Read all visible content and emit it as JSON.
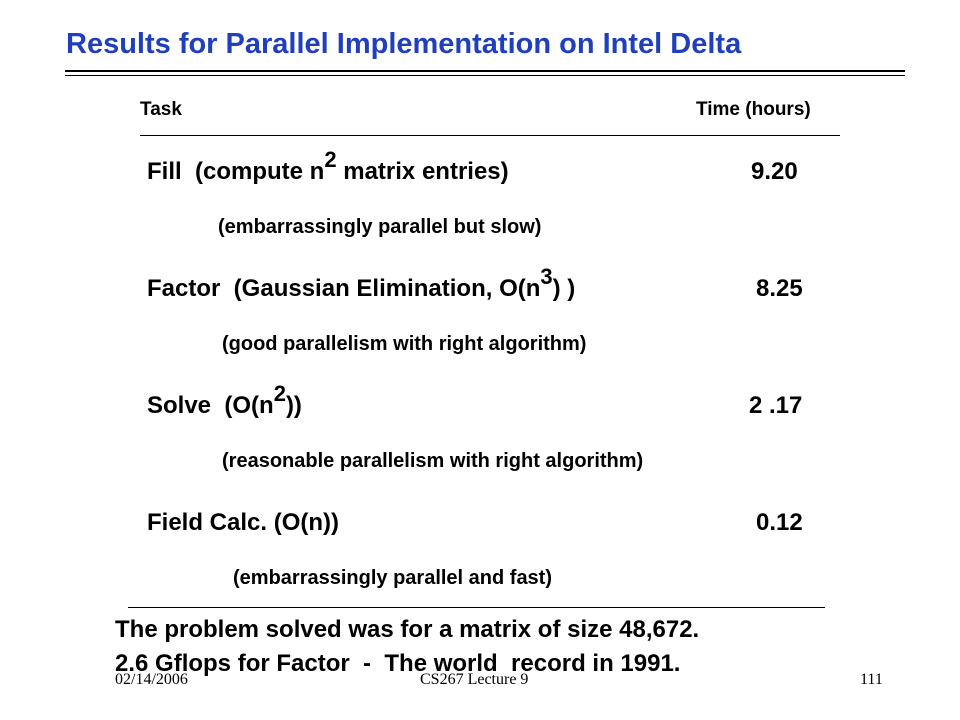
{
  "title": "Results for Parallel Implementation on Intel Delta",
  "table": {
    "headers": [
      "Task",
      "Time (hours)"
    ],
    "rows": [
      {
        "task": [
          "Fill  (compute n",
          "2",
          " matrix entries)"
        ],
        "time": "9.20",
        "note": "(embarrassingly parallel but slow)"
      },
      {
        "task": [
          "Factor  (Gaussian Elimination, O(n",
          "3",
          ") )"
        ],
        "time": "8.25",
        "note": "(good parallelism with right algorithm)"
      },
      {
        "task": [
          "Solve  (O(n",
          "2",
          "))"
        ],
        "time": "2 .17",
        "note": "(reasonable parallelism with right algorithm)"
      },
      {
        "task": [
          "Field Calc. (O(n))"
        ],
        "time": "0.12",
        "note": "(embarrassingly parallel and fast)"
      }
    ]
  },
  "summary": [
    "The problem solved was for a matrix of size 48,672.",
    "2.6 Gflops for Factor  -  The world  record in 1991."
  ],
  "footer": {
    "date": "02/14/2006",
    "course": "CS267 Lecture 9",
    "page": "111"
  }
}
